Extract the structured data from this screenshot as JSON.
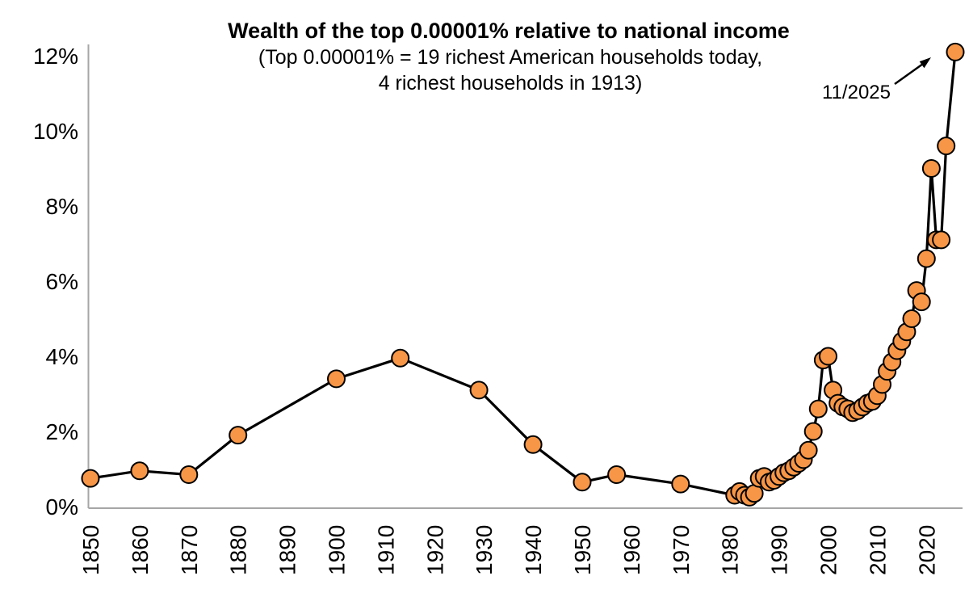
{
  "chart_data": {
    "type": "line",
    "title": "Wealth of the top 0.00001% relative to national income",
    "subtitle": [
      "(Top 0.00001% = 19 richest American households today,",
      "4 richest households in 1913)"
    ],
    "annotation": {
      "label": "11/2025",
      "target_year": 2025.87,
      "target_value": 12.1
    },
    "x_axis": {
      "ticks": [
        1850,
        1860,
        1870,
        1880,
        1890,
        1900,
        1910,
        1920,
        1930,
        1940,
        1950,
        1960,
        1970,
        1980,
        1990,
        2000,
        2010,
        2020
      ],
      "range": [
        1848,
        2027
      ],
      "label": ""
    },
    "y_axis": {
      "tick_labels": [
        "0%",
        "2%",
        "4%",
        "6%",
        "8%",
        "10%",
        "12%"
      ],
      "tick_values": [
        0,
        2,
        4,
        6,
        8,
        10,
        12
      ],
      "range": [
        0,
        12
      ],
      "label": ""
    },
    "grid": false,
    "legend": false,
    "colors": {
      "marker_fill": "#F79646",
      "marker_edge": "#000000",
      "line": "#000000",
      "axis": "#A6A6A6",
      "text": "#000000"
    },
    "series": [
      {
        "name": "Wealth of the top 0.00001% relative to national income",
        "points": [
          [
            1850,
            0.75
          ],
          [
            1860,
            0.95
          ],
          [
            1870,
            0.85
          ],
          [
            1880,
            1.9
          ],
          [
            1900,
            3.4
          ],
          [
            1913,
            3.95
          ],
          [
            1929,
            3.1
          ],
          [
            1940,
            1.65
          ],
          [
            1950,
            0.65
          ],
          [
            1957,
            0.85
          ],
          [
            1970,
            0.6
          ],
          [
            1981,
            0.3
          ],
          [
            1982,
            0.4
          ],
          [
            1983,
            0.3
          ],
          [
            1984,
            0.25
          ],
          [
            1985,
            0.35
          ],
          [
            1986,
            0.75
          ],
          [
            1987,
            0.8
          ],
          [
            1988,
            0.65
          ],
          [
            1989,
            0.7
          ],
          [
            1990,
            0.8
          ],
          [
            1991,
            0.9
          ],
          [
            1992,
            0.95
          ],
          [
            1993,
            1.05
          ],
          [
            1994,
            1.15
          ],
          [
            1995,
            1.25
          ],
          [
            1996,
            1.5
          ],
          [
            1997,
            2.0
          ],
          [
            1998,
            2.6
          ],
          [
            1999,
            3.9
          ],
          [
            2000,
            4.0
          ],
          [
            2001,
            3.1
          ],
          [
            2002,
            2.75
          ],
          [
            2003,
            2.65
          ],
          [
            2004,
            2.6
          ],
          [
            2005,
            2.5
          ],
          [
            2006,
            2.55
          ],
          [
            2007,
            2.65
          ],
          [
            2008,
            2.75
          ],
          [
            2009,
            2.8
          ],
          [
            2010,
            2.95
          ],
          [
            2011,
            3.25
          ],
          [
            2012,
            3.6
          ],
          [
            2013,
            3.85
          ],
          [
            2014,
            4.15
          ],
          [
            2015,
            4.4
          ],
          [
            2016,
            4.65
          ],
          [
            2017,
            5.0
          ],
          [
            2018,
            5.75
          ],
          [
            2019,
            5.45
          ],
          [
            2020,
            6.6
          ],
          [
            2021,
            9.0
          ],
          [
            2022,
            7.1
          ],
          [
            2023,
            7.1
          ],
          [
            2024,
            9.6
          ],
          [
            2025.87,
            12.1
          ]
        ]
      }
    ]
  }
}
